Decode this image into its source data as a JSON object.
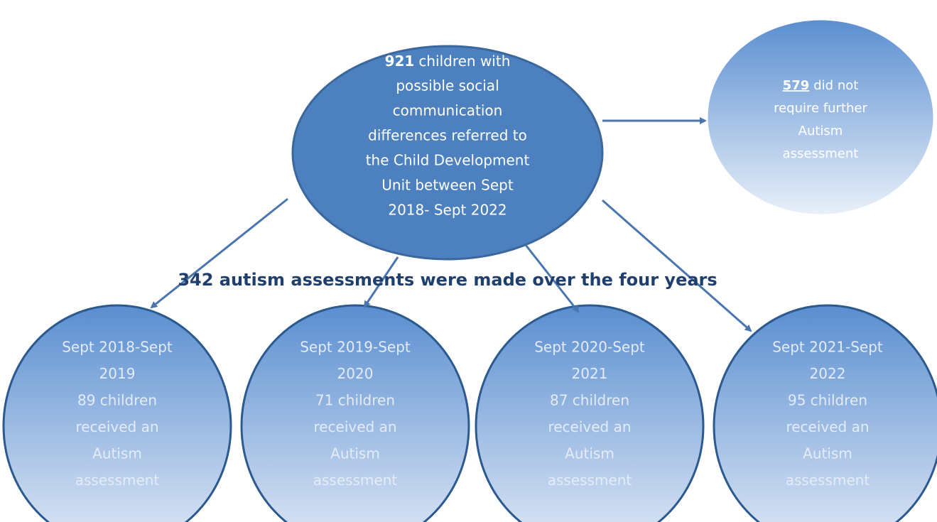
{
  "top_node": {
    "number": "921",
    "first_line": "children with",
    "lines": [
      "possible social",
      "communication",
      "differences referred to",
      "the Child Development",
      "Unit between Sept",
      "2018- Sept 2022"
    ]
  },
  "side_node": {
    "number": "579",
    "first_line": "did not",
    "lines": [
      "require further",
      "Autism",
      "assessment"
    ]
  },
  "heading": "342 autism assessments were made over the four years",
  "year_nodes": [
    {
      "lines": [
        "Sept 2018-Sept",
        "2019",
        "89 children",
        "received an",
        "Autism",
        "assessment"
      ]
    },
    {
      "lines": [
        "Sept 2019-Sept",
        "2020",
        "71 children",
        "received an",
        "Autism",
        "assessment"
      ]
    },
    {
      "lines": [
        "Sept 2020-Sept",
        "2021",
        "87 children",
        "received an",
        "Autism",
        "assessment"
      ]
    },
    {
      "lines": [
        "Sept 2021-Sept",
        "2022",
        "95 children",
        "received an",
        "Autism",
        "assessment"
      ]
    }
  ]
}
